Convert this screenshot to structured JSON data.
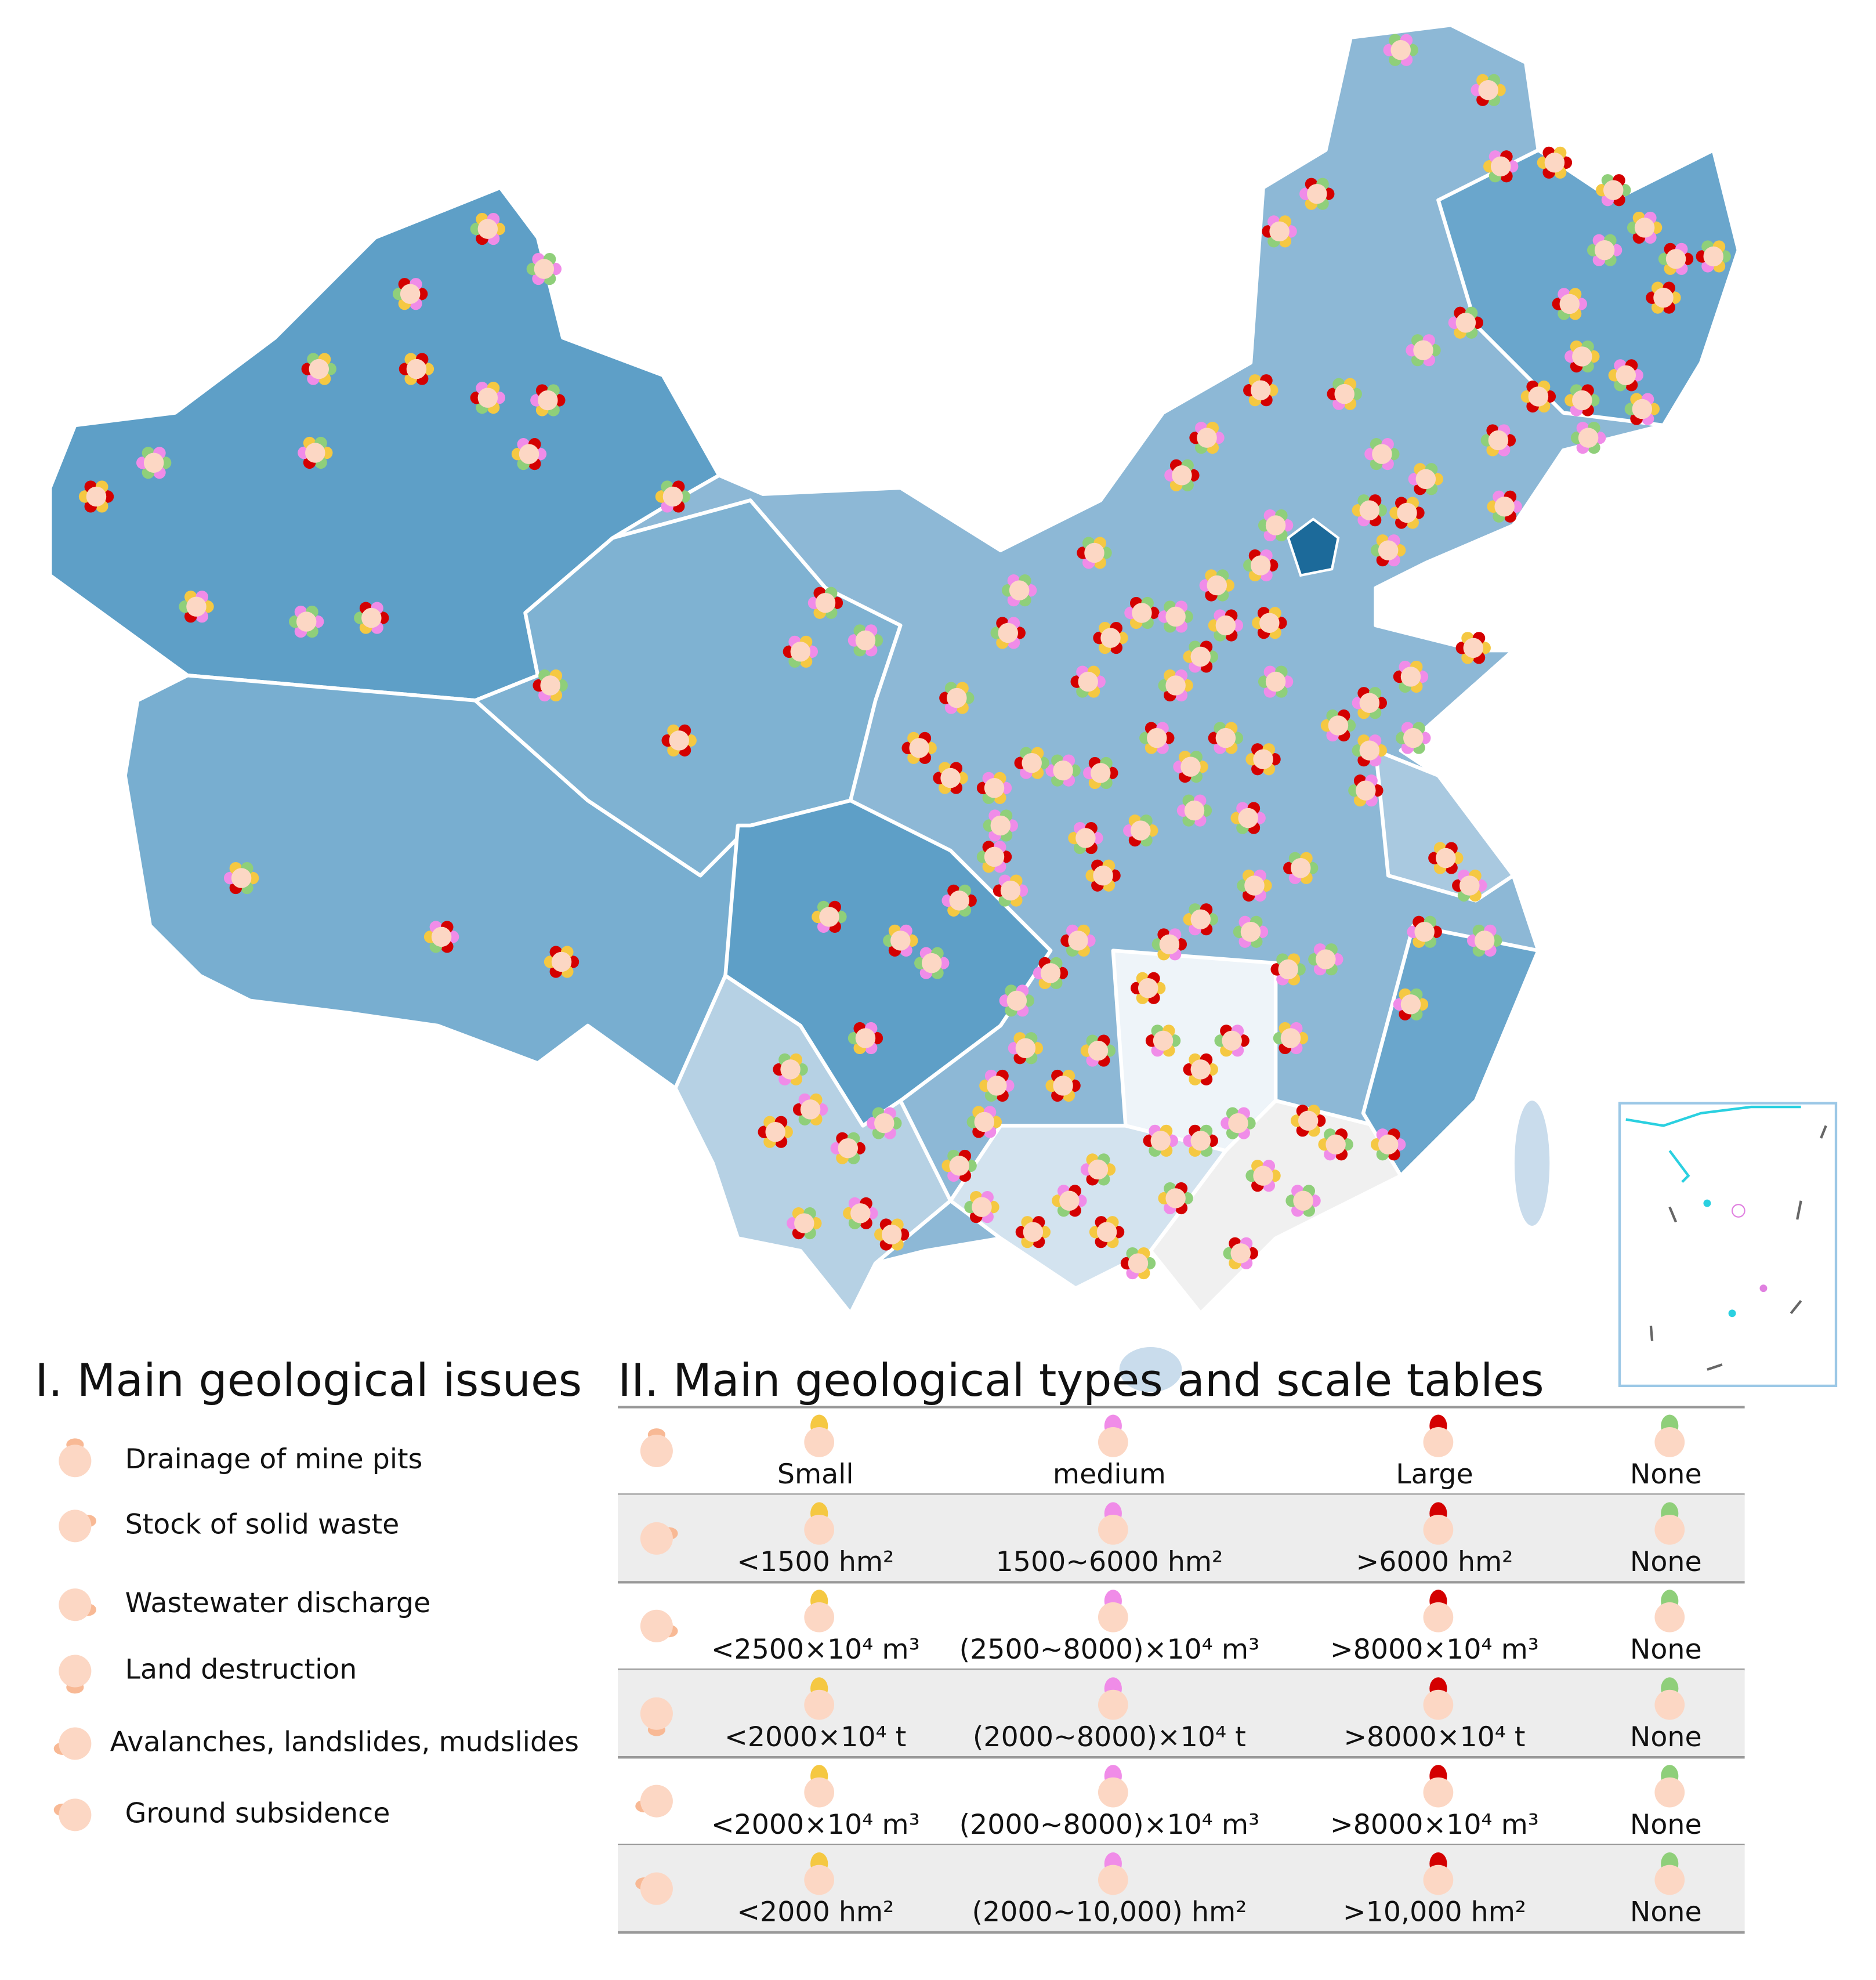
{
  "legend": {
    "title": "I. Main geological issues",
    "items": [
      "Drainage of mine pits",
      "Stock of solid waste",
      "Wastewater discharge",
      "Land destruction",
      "Avalanches, landslides, mudslides",
      "Ground subsidence"
    ]
  },
  "table": {
    "title": "II. Main geological types and scale tables",
    "rows": [
      [
        "Small",
        "medium",
        "Large",
        "None"
      ],
      [
        "<1500 hm²",
        "1500~6000 hm²",
        ">6000 hm²",
        "None"
      ],
      [
        "<2500×10⁴ m³",
        "(2500~8000)×10⁴ m³",
        ">8000×10⁴ m³",
        "None"
      ],
      [
        "<2000×10⁴ t",
        "(2000~8000)×10⁴ t",
        ">8000×10⁴ t",
        "None"
      ],
      [
        "<2000×10⁴ m³",
        "(2000~8000)×10⁴ m³",
        ">8000×10⁴ m³",
        "None"
      ],
      [
        "<2000 hm²",
        "(2000~10,000) hm²",
        ">10,000 hm²",
        "None"
      ]
    ]
  }
}
